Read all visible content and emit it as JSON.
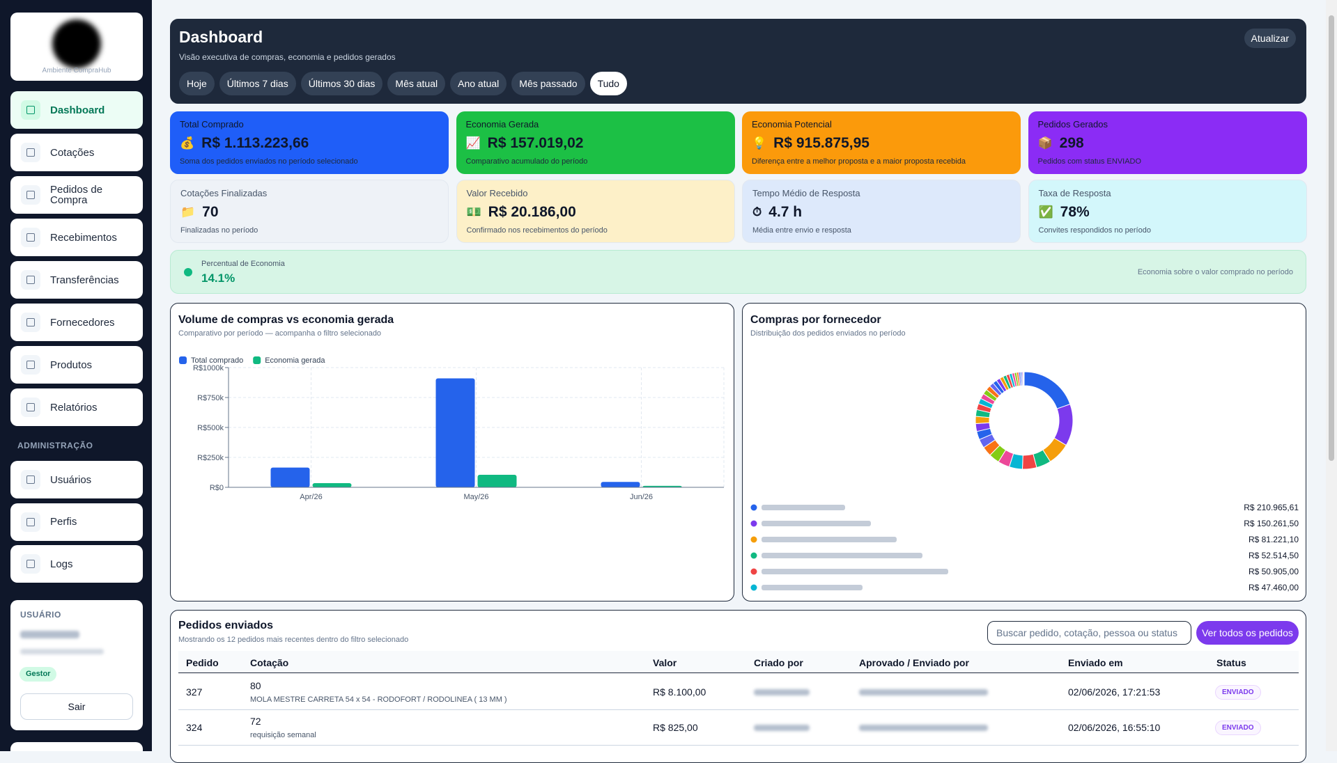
{
  "sidebar": {
    "logo_caption": "Ambiente CompraHub",
    "nav": [
      "Dashboard",
      "Cotações",
      "Pedidos de Compra",
      "Recebimentos",
      "Transferências",
      "Fornecedores",
      "Produtos",
      "Relatórios"
    ],
    "section_label": "ADMINISTRAÇÃO",
    "admin_nav": [
      "Usuários",
      "Perfis",
      "Logs"
    ],
    "user": {
      "label": "USUÁRIO",
      "role": "Gestor",
      "logout": "Sair"
    }
  },
  "header": {
    "title": "Dashboard",
    "subtitle": "Visão executiva de compras, economia e pedidos gerados",
    "refresh": "Atualizar",
    "filters": [
      "Hoje",
      "Últimos 7 dias",
      "Últimos 30 dias",
      "Mês atual",
      "Ano atual",
      "Mês passado",
      "Tudo"
    ],
    "active_filter": 6
  },
  "kpis": [
    {
      "label": "Total Comprado",
      "icon": "💰",
      "value": "R$ 1.113.223,66",
      "note": "Soma dos pedidos enviados no período selecionado",
      "color": "#1f5ef8"
    },
    {
      "label": "Economia Gerada",
      "icon": "📈",
      "value": "R$ 157.019,02",
      "note": "Comparativo acumulado do período",
      "color": "#1cc045"
    },
    {
      "label": "Economia Potencial",
      "icon": "💡",
      "value": "R$ 915.875,95",
      "note": "Diferença entre a melhor proposta e a maior proposta recebida",
      "color": "#fb9a0b"
    },
    {
      "label": "Pedidos Gerados",
      "icon": "📦",
      "value": "298",
      "note": "Pedidos com status ENVIADO",
      "color": "#8b2cf5"
    },
    {
      "label": "Cotações Finalizadas",
      "icon": "📁",
      "value": "70",
      "note": "Finalizadas no período",
      "color": "#eef2f7"
    },
    {
      "label": "Valor Recebido",
      "icon": "💵",
      "value": "R$ 20.186,00",
      "note": "Confirmado nos recebimentos do período",
      "color": "#fdf0c8"
    },
    {
      "label": "Tempo Médio de Resposta",
      "icon": "⏱",
      "value": "4.7 h",
      "note": "Média entre envio e resposta",
      "color": "#dde9fb"
    },
    {
      "label": "Taxa de Resposta",
      "icon": "✅",
      "value": "78%",
      "note": "Convites respondidos no período",
      "color": "#d3f7fb"
    }
  ],
  "savings": {
    "label": "Percentual de Economia",
    "value": "14.1%",
    "note": "Economia sobre o valor comprado no período"
  },
  "chart_data": [
    {
      "type": "bar",
      "title": "Volume de compras vs economia gerada",
      "subtitle": "Comparativo por período — acompanha o filtro selecionado",
      "categories": [
        "Apr/26",
        "May/26",
        "Jun/26"
      ],
      "series": [
        {
          "name": "Total comprado",
          "color": "#2563eb",
          "values": [
            165000,
            910000,
            45000
          ]
        },
        {
          "name": "Economia gerada",
          "color": "#10b981",
          "values": [
            35000,
            105000,
            12000
          ]
        }
      ],
      "ylim": [
        0,
        1000000
      ],
      "yticks": [
        {
          "value": 0,
          "label": "R$0"
        },
        {
          "value": 250000,
          "label": "R$250k"
        },
        {
          "value": 500000,
          "label": "R$500k"
        },
        {
          "value": 750000,
          "label": "R$750k"
        },
        {
          "value": 1000000,
          "label": "R$1000k"
        }
      ],
      "grid": true,
      "legend": "top-left"
    },
    {
      "type": "pie",
      "title": "Compras por fornecedor",
      "subtitle": "Distribuição dos pedidos enviados no período",
      "donut": true,
      "values": [
        210965.61,
        150261.5,
        81221.1,
        52514.5,
        50905.0,
        47460.0,
        42000,
        38000,
        35000,
        32000,
        30000,
        28000,
        26000,
        24000,
        22000,
        20000,
        19000,
        18000,
        17000,
        16000,
        15000,
        14000,
        13000,
        12000,
        11000,
        10000,
        9000,
        8000,
        7000,
        6000,
        5000,
        4000,
        3000,
        2000
      ],
      "value_labels": [
        "R$ 210.965,61",
        "R$ 150.261,50",
        "R$ 81.221,10",
        "R$ 52.514,50",
        "R$ 50.905,00",
        "R$ 47.460,00",
        null,
        null,
        null,
        null,
        null,
        null,
        null,
        null,
        null,
        null,
        null,
        null,
        null,
        null,
        null,
        null,
        null,
        null,
        null,
        null,
        null,
        null,
        null,
        null,
        null,
        null,
        null,
        null
      ],
      "palette": [
        "#2563eb",
        "#7c3aed",
        "#f59e0b",
        "#10b981",
        "#ef4444",
        "#06b6d4",
        "#ec4899",
        "#84cc16",
        "#f97316",
        "#6366f1"
      ]
    }
  ],
  "table": {
    "title": "Pedidos enviados",
    "subtitle": "Mostrando os 12 pedidos mais recentes dentro do filtro selecionado",
    "search_placeholder": "Buscar pedido, cotação, pessoa ou status",
    "view_all": "Ver todos os pedidos",
    "headers": [
      "Pedido",
      "Cotação",
      "Valor",
      "Criado por",
      "Aprovado / Enviado por",
      "Enviado em",
      "Status"
    ],
    "rows": [
      {
        "pedido": "327",
        "cotacao": "80",
        "descricao": "MOLA MESTRE CARRETA 54 x 54 - RODOFORT / RODOLINEA ( 13 MM )",
        "valor": "R$ 8.100,00",
        "enviado_em": "02/06/2026, 17:21:53",
        "status": "ENVIADO"
      },
      {
        "pedido": "324",
        "cotacao": "72",
        "descricao": "requisição semanal",
        "valor": "R$ 825,00",
        "enviado_em": "02/06/2026, 16:55:10",
        "status": "ENVIADO"
      }
    ]
  }
}
